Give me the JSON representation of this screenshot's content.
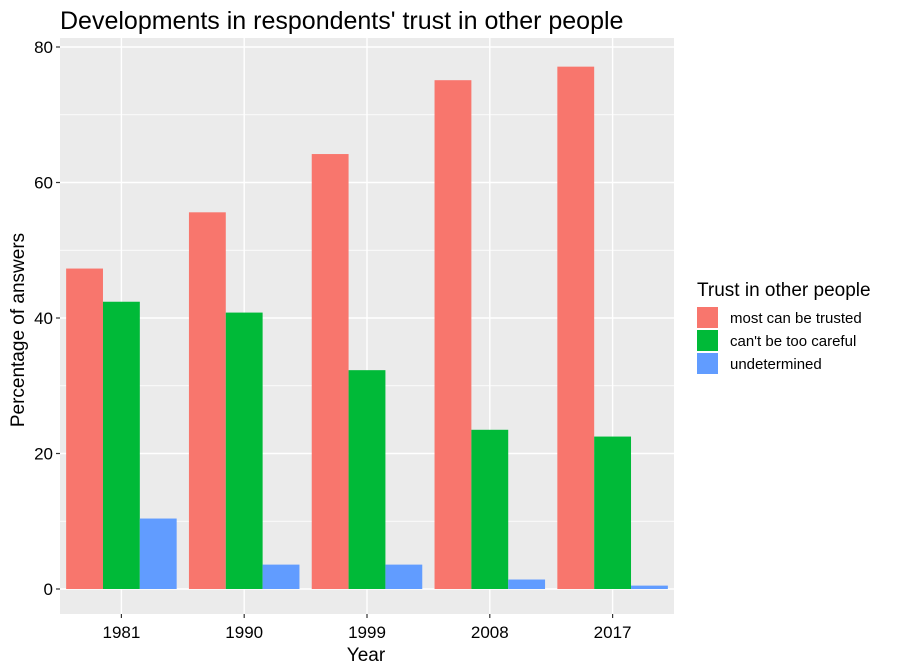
{
  "chart_data": {
    "type": "bar",
    "title": "Developments in respondents' trust in other people",
    "xlabel": "Year",
    "ylabel": "Percentage of answers",
    "categories": [
      "1981",
      "1990",
      "1999",
      "2008",
      "2017"
    ],
    "series": [
      {
        "name": "most can be trusted",
        "color": "#F8766D",
        "values": [
          47.3,
          55.6,
          64.2,
          75.1,
          77.1
        ]
      },
      {
        "name": "can't be too careful",
        "color": "#00BA38",
        "values": [
          42.4,
          40.8,
          32.3,
          23.5,
          22.5
        ]
      },
      {
        "name": "undetermined",
        "color": "#619CFF",
        "values": [
          10.4,
          3.6,
          3.6,
          1.4,
          0.5
        ]
      }
    ],
    "ylim": [
      0,
      80
    ],
    "yticks": [
      0,
      20,
      40,
      60,
      80
    ],
    "grid": true,
    "legend": {
      "title": "Trust in other people",
      "position": "right"
    },
    "panel_background": "#EBEBEB",
    "gridline_color": "#FFFFFF"
  }
}
